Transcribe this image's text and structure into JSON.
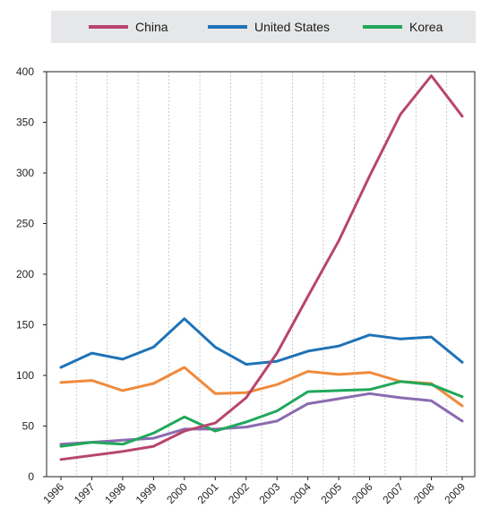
{
  "legend": {
    "items": [
      {
        "label": "China",
        "color": "#b8456e"
      },
      {
        "label": "United States",
        "color": "#1f73b7"
      },
      {
        "label": "Korea",
        "color": "#1fa85a"
      }
    ]
  },
  "chart_data": {
    "type": "line",
    "title": "",
    "xlabel": "",
    "ylabel": "",
    "x": [
      "1996",
      "1997",
      "1998",
      "1999",
      "2000",
      "2001",
      "2002",
      "2003",
      "2004",
      "2005",
      "2006",
      "2007",
      "2008",
      "2009"
    ],
    "ylim": [
      0,
      400
    ],
    "yticks": [
      0,
      50,
      100,
      150,
      200,
      250,
      300,
      350,
      400
    ],
    "grid": {
      "vertical": true,
      "horizontal": false
    },
    "legend_position": "top",
    "series": [
      {
        "name": "China",
        "color": "#b8456e",
        "values": [
          17,
          21,
          25,
          30,
          45,
          53,
          78,
          122,
          178,
          233,
          297,
          358,
          396,
          356
        ]
      },
      {
        "name": "United States",
        "color": "#1f73b7",
        "values": [
          108,
          122,
          116,
          128,
          156,
          128,
          111,
          114,
          124,
          129,
          140,
          136,
          138,
          113
        ]
      },
      {
        "name": "Korea",
        "color": "#1fa85a",
        "values": [
          30,
          34,
          32,
          43,
          59,
          45,
          54,
          65,
          84,
          85,
          86,
          94,
          91,
          79
        ]
      },
      {
        "color": "#f08a3c",
        "values": [
          93,
          95,
          85,
          92,
          108,
          82,
          83,
          91,
          104,
          101,
          103,
          94,
          92,
          70
        ]
      },
      {
        "color": "#8a6bb0",
        "values": [
          32,
          34,
          36,
          38,
          47,
          47,
          49,
          55,
          72,
          77,
          82,
          78,
          75,
          55
        ]
      }
    ]
  }
}
